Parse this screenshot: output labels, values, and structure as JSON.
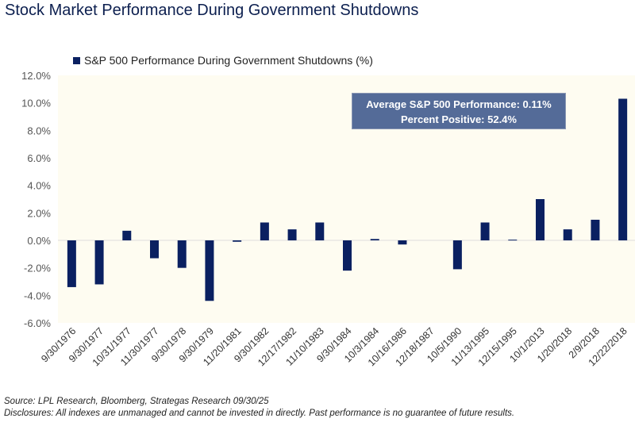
{
  "title": "Stock Market Performance During Government Shutdowns",
  "annotation": {
    "line1": "Average S&P 500 Performance: 0.11%",
    "line2": "Percent Positive: 52.4%"
  },
  "footer": {
    "source": "Source: LPL Research, Bloomberg, Strategas Research 09/30/25",
    "disclosure": "Disclosures: All indexes are unmanaged and cannot be invested in directly. Past performance is no guarantee of future results."
  },
  "chart_data": {
    "type": "bar",
    "title": "Stock Market Performance During Government Shutdowns",
    "legend_position": "top-left",
    "colors": {
      "bar": "#0a2061",
      "plot_bg": "#fefcf1"
    },
    "grid": false,
    "ylim": [
      -6,
      12
    ],
    "yticks": [
      "12.0%",
      "10.0%",
      "8.0%",
      "6.0%",
      "4.0%",
      "2.0%",
      "0.0%",
      "-2.0%",
      "-4.0%",
      "-6.0%"
    ],
    "categories": [
      "9/30/1976",
      "9/30/1977",
      "10/31/1977",
      "11/30/1977",
      "9/30/1978",
      "9/30/1979",
      "11/20/1981",
      "9/30/1982",
      "12/17/1982",
      "11/10/1983",
      "9/30/1984",
      "10/3/1984",
      "10/16/1986",
      "12/18/1987",
      "10/5/1990",
      "11/13/1995",
      "12/15/1995",
      "10/1/2013",
      "1/20/2018",
      "2/9/2018",
      "12/22/2018"
    ],
    "series": [
      {
        "name": "S&P 500 Performance During Government Shutdowns (%)",
        "values": [
          -3.4,
          -3.2,
          0.7,
          -1.3,
          -2.0,
          -4.4,
          -0.1,
          1.3,
          0.8,
          1.3,
          -2.2,
          0.1,
          -0.3,
          0.0,
          -2.1,
          1.3,
          0.05,
          3.0,
          0.8,
          1.5,
          10.3
        ]
      }
    ]
  }
}
